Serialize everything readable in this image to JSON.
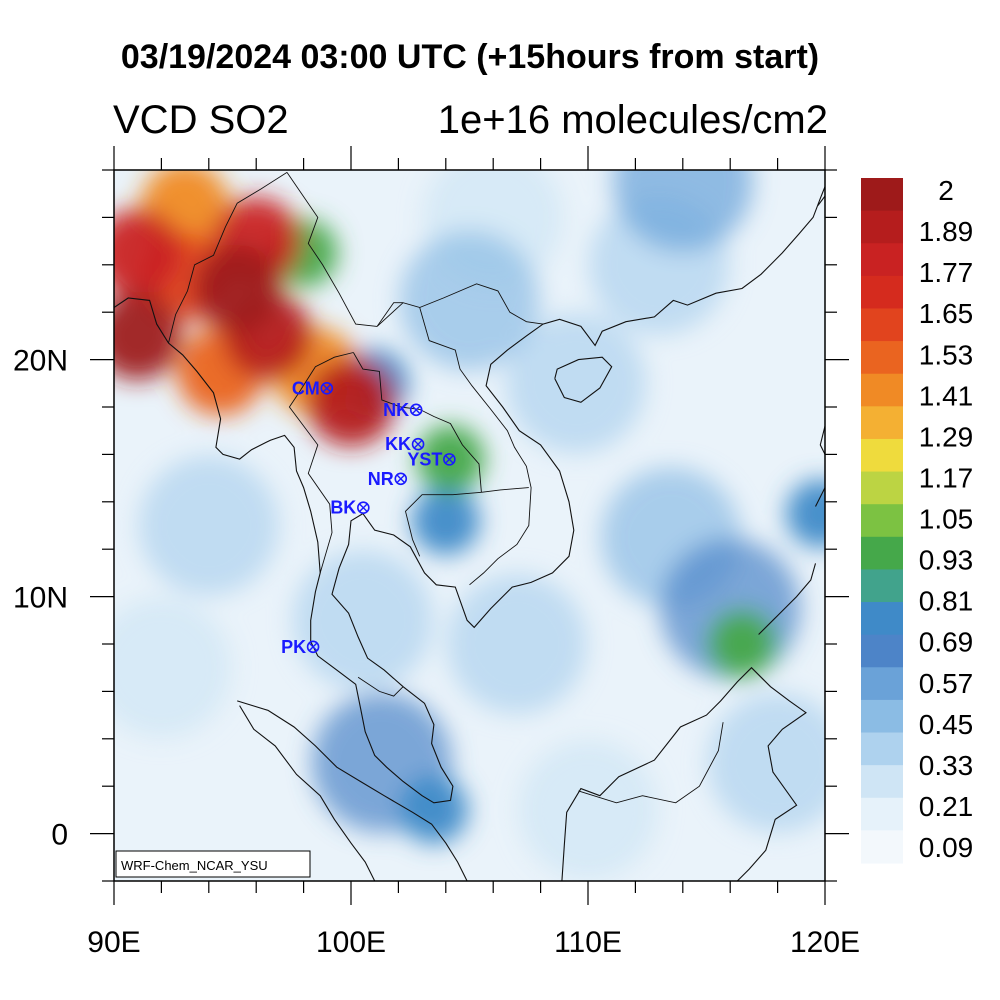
{
  "header": {
    "title": "03/19/2024 03:00 UTC (+15hours from start)",
    "left_label": "VCD SO2",
    "right_label": "1e+16 molecules/cm2"
  },
  "map": {
    "lon_range": [
      90,
      120
    ],
    "lat_range": [
      -2,
      28
    ],
    "x_ticks": [
      {
        "lon": 90,
        "label": "90E"
      },
      {
        "lon": 100,
        "label": "100E"
      },
      {
        "lon": 110,
        "label": "110E"
      },
      {
        "lon": 120,
        "label": "120E"
      }
    ],
    "y_ticks": [
      {
        "lat": 0,
        "label": "0"
      },
      {
        "lat": 10,
        "label": "10N"
      },
      {
        "lat": 20,
        "label": "20N"
      }
    ],
    "credit": "WRF-Chem_NCAR_YSU",
    "stations": [
      {
        "code": "CM",
        "lon": 98.98,
        "lat": 18.79
      },
      {
        "code": "NK",
        "lon": 102.75,
        "lat": 17.88
      },
      {
        "code": "KK",
        "lon": 102.83,
        "lat": 16.43
      },
      {
        "code": "YST",
        "lon": 104.15,
        "lat": 15.79
      },
      {
        "code": "NR",
        "lon": 102.1,
        "lat": 14.97
      },
      {
        "code": "BK",
        "lon": 100.52,
        "lat": 13.75
      },
      {
        "code": "PK",
        "lon": 98.4,
        "lat": 7.88
      }
    ]
  },
  "colorbar": {
    "labels": [
      "2",
      "1.89",
      "1.77",
      "1.65",
      "1.53",
      "1.41",
      "1.29",
      "1.17",
      "1.05",
      "0.93",
      "0.81",
      "0.69",
      "0.57",
      "0.45",
      "0.33",
      "0.21",
      "0.09"
    ],
    "colors_top_to_bottom": [
      "#9e1a1a",
      "#b51d1d",
      "#c92222",
      "#d52b1e",
      "#e1441e",
      "#ea6420",
      "#f08a25",
      "#f4b033",
      "#efdb3d",
      "#bcd443",
      "#7cc242",
      "#45a84a",
      "#41a38c",
      "#3f8ac8",
      "#4d84c8",
      "#6aa2d8",
      "#8bbce4",
      "#aed2ee",
      "#cfe5f5",
      "#e6f2fa",
      "#f3f8fc"
    ]
  },
  "plume_field": [
    {
      "lon": 91.0,
      "lat": 21.0,
      "value": 2.0
    },
    {
      "lon": 91.0,
      "lat": 24.5,
      "value": 1.8
    },
    {
      "lon": 93.0,
      "lat": 23.5,
      "value": 1.6
    },
    {
      "lon": 95.2,
      "lat": 23.0,
      "value": 2.0
    },
    {
      "lon": 96.0,
      "lat": 25.0,
      "value": 1.8
    },
    {
      "lon": 96.5,
      "lat": 21.0,
      "value": 1.9
    },
    {
      "lon": 94.5,
      "lat": 19.5,
      "value": 1.5
    },
    {
      "lon": 98.5,
      "lat": 19.5,
      "value": 1.4
    },
    {
      "lon": 100.0,
      "lat": 18.2,
      "value": 1.9
    },
    {
      "lon": 93.0,
      "lat": 26.5,
      "value": 1.4
    },
    {
      "lon": 98.0,
      "lat": 24.5,
      "value": 0.9
    },
    {
      "lon": 101.0,
      "lat": 19.0,
      "value": 0.7
    },
    {
      "lon": 104.2,
      "lat": 15.8,
      "value": 0.9
    },
    {
      "lon": 104.0,
      "lat": 13.2,
      "value": 0.7
    },
    {
      "lon": 116.5,
      "lat": 8.0,
      "value": 0.9
    },
    {
      "lon": 116.0,
      "lat": 9.5,
      "value": 0.6
    },
    {
      "lon": 119.8,
      "lat": 13.5,
      "value": 0.7
    },
    {
      "lon": 103.5,
      "lat": 1.0,
      "value": 0.7
    },
    {
      "lon": 101.3,
      "lat": 3.0,
      "value": 0.6
    },
    {
      "lon": 113.5,
      "lat": 12.5,
      "value": 0.45
    },
    {
      "lon": 109.5,
      "lat": 19.0,
      "value": 0.3
    },
    {
      "lon": 113.0,
      "lat": 24.0,
      "value": 0.35
    },
    {
      "lon": 114.0,
      "lat": 27.5,
      "value": 0.5
    },
    {
      "lon": 106.0,
      "lat": 26.0,
      "value": 0.25
    },
    {
      "lon": 94.0,
      "lat": 13.0,
      "value": 0.3
    },
    {
      "lon": 100.5,
      "lat": 9.0,
      "value": 0.35
    },
    {
      "lon": 107.0,
      "lat": 8.0,
      "value": 0.35
    },
    {
      "lon": 105.0,
      "lat": 22.5,
      "value": 0.4
    },
    {
      "lon": 92.0,
      "lat": 7.0,
      "value": 0.25
    },
    {
      "lon": 118.0,
      "lat": 3.0,
      "value": 0.3
    },
    {
      "lon": 110.0,
      "lat": 1.0,
      "value": 0.25
    }
  ]
}
